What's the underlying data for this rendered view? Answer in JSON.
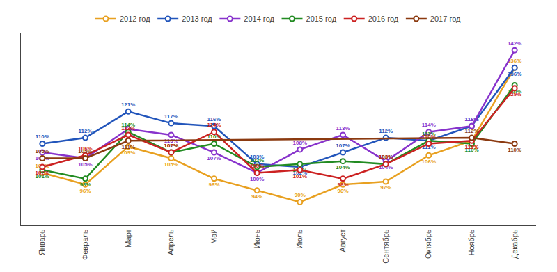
{
  "chart_data": {
    "type": "line",
    "categories": [
      "Январь",
      "Февраль",
      "Март",
      "Апрель",
      "Май",
      "Июнь",
      "Июль",
      "Август",
      "Сентябрь",
      "Октябрь",
      "Ноябрь",
      "Декабрь"
    ],
    "series": [
      {
        "name": "2012 год",
        "color": "#E8A020",
        "values": [
          100,
          96,
          109,
          105,
          98,
          94,
          90,
          96,
          97,
          106,
          111,
          136
        ],
        "value_labels": [
          "100%",
          "96%",
          "109%",
          "105%",
          "98%",
          "94%",
          "90%",
          "96%",
          "97%",
          "106%",
          "111%",
          "136%"
        ]
      },
      {
        "name": "2013 год",
        "color": "#2255BB",
        "values": [
          110,
          112,
          121,
          117,
          116,
          103,
          102,
          107,
          112,
          111,
          116,
          136
        ],
        "value_labels": [
          "110%",
          "112%",
          "121%",
          "117%",
          "116%",
          "103%",
          "102%",
          "107%",
          "112%",
          "111%",
          "116%",
          "136%"
        ]
      },
      {
        "name": "2014 год",
        "color": "#8833CC",
        "values": [
          107,
          105,
          115,
          113,
          107,
          100,
          108,
          113,
          104,
          114,
          116,
          142
        ],
        "value_labels": [
          "107%",
          "105%",
          "115%",
          "113%",
          "107%",
          "100%",
          "108%",
          "113%",
          "104%",
          "114%",
          "116%",
          "142%"
        ]
      },
      {
        "name": "2015 год",
        "color": "#228B22",
        "values": [
          101,
          98,
          114,
          107,
          110,
          102,
          103,
          104,
          103,
          111,
          110,
          130
        ],
        "value_labels": [
          "101%",
          "98%",
          "114%",
          "107%",
          "110%",
          "102%",
          "103%",
          "104%",
          "103%",
          "111%",
          "110%",
          "130%"
        ]
      },
      {
        "name": "2016 год",
        "color": "#CC2222",
        "values": [
          102,
          106,
          113,
          107,
          114,
          100,
          101,
          98,
          103,
          110,
          111,
          129
        ],
        "value_labels": [
          "102%",
          "106%",
          "113%",
          "107%",
          "114%",
          "100%",
          "101%",
          "98%",
          "103%",
          "110%",
          "111%",
          "129%"
        ]
      },
      {
        "name": "2017 год",
        "color": "#8B3A10",
        "values": [
          105,
          105,
          111,
          null,
          null,
          null,
          null,
          null,
          null,
          null,
          112,
          110
        ],
        "value_labels": [
          "105%",
          "105%",
          "111%",
          null,
          null,
          null,
          null,
          null,
          null,
          null,
          "112%",
          "110%"
        ]
      }
    ],
    "ylim": [
      82,
      148
    ],
    "grid": false,
    "legend": "top",
    "data_labels": true,
    "tick_labels": "x",
    "marker": "circle"
  }
}
